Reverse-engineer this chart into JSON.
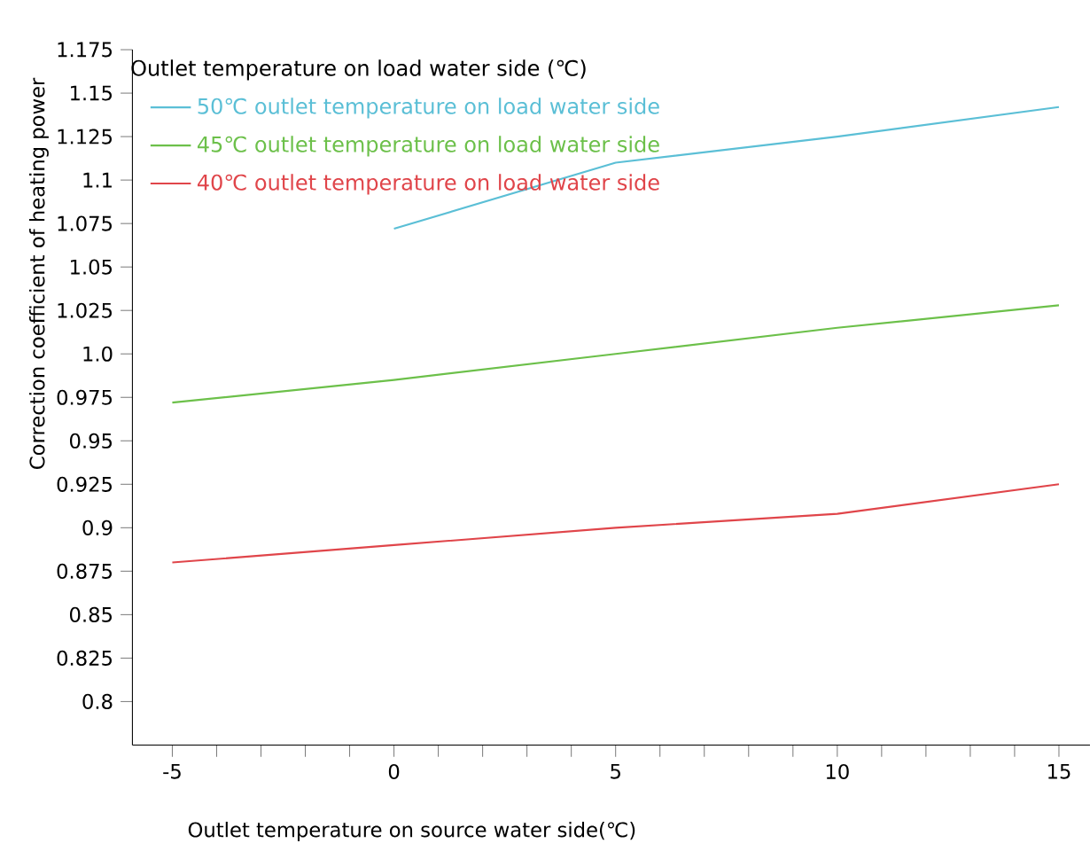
{
  "chart_data": {
    "type": "line",
    "xlabel": "Outlet temperature on source water side(℃)",
    "ylabel": "Correction coefficient of heating power",
    "legend_title": "Outlet temperature on load water side (℃)",
    "legend": "top left",
    "grid": false,
    "marker": "none",
    "line_style": "solid",
    "xlim": [
      -5.9,
      15.7
    ],
    "ylim": [
      0.775,
      1.175
    ],
    "xticks": [
      -5,
      {
        "value": -4,
        "label": null
      },
      {
        "value": -3,
        "label": null
      },
      {
        "value": -2,
        "label": null
      },
      {
        "value": -1,
        "label": null
      },
      0,
      {
        "value": 1,
        "label": null
      },
      {
        "value": 2,
        "label": null
      },
      {
        "value": 3,
        "label": null
      },
      {
        "value": 4,
        "label": null
      },
      5,
      {
        "value": 6,
        "label": null
      },
      {
        "value": 7,
        "label": null
      },
      {
        "value": 8,
        "label": null
      },
      {
        "value": 9,
        "label": null
      },
      10,
      {
        "value": 11,
        "label": null
      },
      {
        "value": 12,
        "label": null
      },
      {
        "value": 13,
        "label": null
      },
      {
        "value": 14,
        "label": null
      },
      15
    ],
    "yticks": [
      0.8,
      0.825,
      0.85,
      0.875,
      0.9,
      0.925,
      0.95,
      0.975,
      {
        "value": 1.0,
        "label": "1.0"
      },
      1.025,
      1.05,
      1.075,
      1.1,
      1.125,
      1.15,
      1.175
    ],
    "series": [
      {
        "name": "50℃ outlet temperature on load water side",
        "color": "#5bbfd6",
        "x": [
          0,
          5,
          10,
          15
        ],
        "values": [
          1.072,
          1.11,
          1.125,
          1.142
        ]
      },
      {
        "name": "45℃ outlet temperature on load water side",
        "color": "#6cc04a",
        "x": [
          -5,
          0,
          5,
          10,
          15
        ],
        "values": [
          0.972,
          0.985,
          1.0,
          1.015,
          1.028
        ]
      },
      {
        "name": "40℃ outlet temperature on load water side",
        "color": "#e0454a",
        "x": [
          -5,
          0,
          5,
          10,
          15
        ],
        "values": [
          0.88,
          0.89,
          0.9,
          0.908,
          0.925
        ]
      }
    ]
  }
}
